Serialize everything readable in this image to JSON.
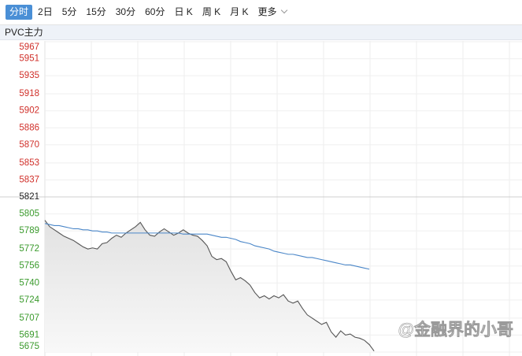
{
  "tabs": [
    "分时",
    "2日",
    "5分",
    "15分",
    "30分",
    "60分",
    "日 K",
    "周 K",
    "月 K",
    "更多"
  ],
  "active_tab_index": 0,
  "chart_data": {
    "type": "line",
    "title": "PVC主力",
    "watermark": "@金融界的小哥",
    "ylim": [
      5675,
      5967
    ],
    "yticks": [
      5967,
      5951,
      5935,
      5918,
      5902,
      5886,
      5870,
      5853,
      5837,
      5821,
      5805,
      5789,
      5772,
      5756,
      5740,
      5724,
      5707,
      5691,
      5675
    ],
    "prev_close": 5821,
    "up_color": "#d0302a",
    "down_color": "#3a9a2c",
    "flat_color": "#222222",
    "grid": true,
    "categories": [
      null,
      null,
      null,
      null,
      null,
      null,
      null,
      null,
      null,
      null,
      null,
      null,
      null,
      null,
      null,
      null,
      null,
      null,
      null,
      null,
      null,
      null,
      null,
      null,
      null,
      null,
      null,
      null,
      null,
      null,
      null,
      null,
      null,
      null,
      null,
      null,
      null,
      null,
      null,
      null,
      null,
      null,
      null,
      null,
      null,
      null,
      null,
      null,
      null,
      null,
      null,
      null,
      null,
      null,
      null,
      null,
      null,
      null,
      null,
      null,
      null,
      null,
      null,
      null,
      null,
      null,
      null,
      null,
      null,
      null,
      null,
      null,
      null,
      null,
      null,
      null,
      null,
      null,
      null,
      null,
      null,
      null,
      null,
      null,
      null,
      null,
      null,
      null,
      null,
      null,
      null,
      null,
      null,
      null,
      null,
      null,
      null,
      null,
      null,
      null,
      null
    ],
    "series": [
      {
        "name": "price",
        "color": "#555555",
        "fill": true,
        "values": [
          5799,
          5793,
          5790,
          5787,
          5784,
          5782,
          5780,
          5777,
          5774,
          5772,
          5773,
          5772,
          5777,
          5778,
          5782,
          5785,
          5783,
          5787,
          5790,
          5793,
          5797,
          5790,
          5785,
          5784,
          5788,
          5791,
          5788,
          5785,
          5787,
          5790,
          5787,
          5785,
          5784,
          5780,
          5775,
          5765,
          5762,
          5763,
          5760,
          5751,
          5743,
          5745,
          5742,
          5738,
          5731,
          5726,
          5728,
          5725,
          5728,
          5726,
          5729,
          5723,
          5721,
          5723,
          5716,
          5710,
          5707,
          5704,
          5701,
          5703,
          5694,
          5689,
          5695,
          5691,
          5692,
          5689,
          5688,
          5686,
          5682,
          5676,
          null,
          null,
          null,
          null,
          null,
          null,
          null,
          null,
          null,
          null,
          null,
          null,
          null,
          null,
          null,
          null,
          null,
          null,
          null,
          null,
          null,
          null,
          null,
          null,
          null,
          null,
          null,
          null,
          null,
          null,
          null
        ]
      },
      {
        "name": "average",
        "color": "#4a86c8",
        "fill": false,
        "values": [
          5796,
          5795,
          5794,
          5794,
          5793,
          5792,
          5791,
          5791,
          5790,
          5790,
          5789,
          5789,
          5788,
          5788,
          5787,
          5787,
          5787,
          5787,
          5787,
          5787,
          5787,
          5787,
          5787,
          5787,
          5787,
          5787,
          5787,
          5787,
          5787,
          5786,
          5786,
          5786,
          5786,
          5786,
          5786,
          5785,
          5784,
          5783,
          5783,
          5782,
          5781,
          5779,
          5778,
          5777,
          5775,
          5774,
          5773,
          5772,
          5770,
          5769,
          5768,
          5767,
          5767,
          5766,
          5765,
          5764,
          5764,
          5763,
          5762,
          5761,
          5760,
          5759,
          5758,
          5757,
          5757,
          5756,
          5755,
          5754,
          5753,
          null,
          null,
          null,
          null,
          null,
          null,
          null,
          null,
          null,
          null,
          null,
          null,
          null,
          null,
          null,
          null,
          null,
          null,
          null,
          null,
          null,
          null,
          null,
          null,
          null,
          null,
          null,
          null,
          null,
          null,
          null,
          null
        ]
      }
    ]
  }
}
